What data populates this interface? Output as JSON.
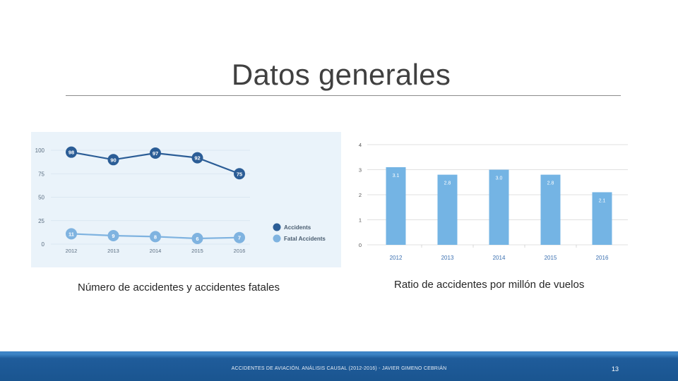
{
  "slide": {
    "title": "Datos generales",
    "footer": "ACCIDENTES DE AVIACIÓN. ANÁLISIS CAUSAL (2012-2016) - JAVIER GIMENO CEBRIÁN",
    "page_number": "13"
  },
  "captions": {
    "left": "Número de accidentes y accidentes fatales",
    "right": "Ratio de accidentes por millón de vuelos"
  },
  "colors": {
    "accidents": "#2b5d96",
    "fatal": "#7fb3e0",
    "bars": "#74b4e4",
    "chart_bg": "#eaf3fa"
  },
  "chart_data": [
    {
      "type": "line",
      "categories": [
        "2012",
        "2013",
        "2014",
        "2015",
        "2016"
      ],
      "series": [
        {
          "name": "Accidents",
          "values": [
            98,
            90,
            97,
            92,
            75
          ]
        },
        {
          "name": "Fatal Accidents",
          "values": [
            11,
            9,
            8,
            6,
            7
          ]
        }
      ],
      "yticks": [
        "0",
        "25",
        "50",
        "75",
        "100"
      ],
      "ylim": [
        0,
        100
      ],
      "legend": [
        "Accidents",
        "Fatal Accidents"
      ],
      "legend_position": "right",
      "title": "",
      "xlabel": "",
      "ylabel": ""
    },
    {
      "type": "bar",
      "categories": [
        "2012",
        "2013",
        "2014",
        "2015",
        "2016"
      ],
      "values": [
        3.1,
        2.8,
        3.0,
        2.8,
        2.1
      ],
      "labels": [
        "3.1",
        "2.8",
        "3.0",
        "2.8",
        "2.1"
      ],
      "yticks": [
        "0",
        "1",
        "2",
        "3",
        "4"
      ],
      "ylim": [
        0,
        4
      ],
      "title": "",
      "xlabel": "",
      "ylabel": ""
    }
  ]
}
